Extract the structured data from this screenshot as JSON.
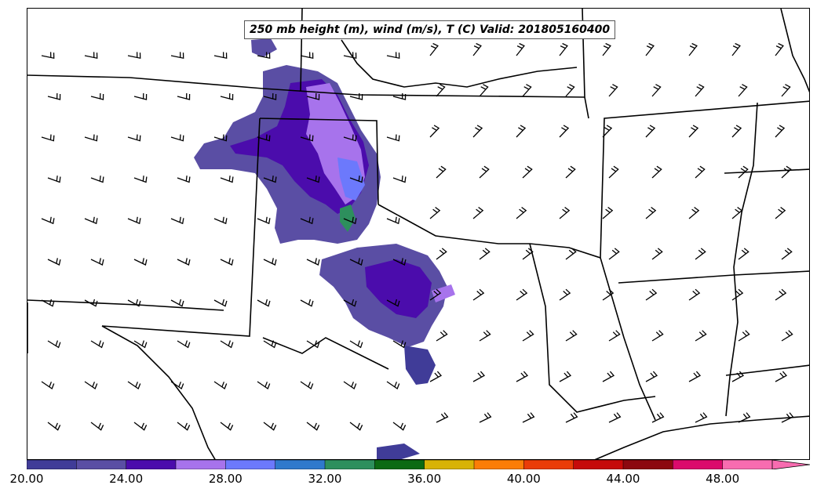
{
  "title": "250 mb height (m), wind (m/s), T (C) Valid: 201805160400",
  "colorbar": {
    "levels": [
      20,
      22,
      24,
      26,
      28,
      30,
      32,
      34,
      36,
      38,
      40,
      42,
      44,
      46,
      48,
      50
    ],
    "colors": [
      "#403c98",
      "#5a4ea4",
      "#4b0cac",
      "#a773ec",
      "#6c79fc",
      "#2f79cc",
      "#2d8f5d",
      "#0b6a13",
      "#d8b306",
      "#fb7d07",
      "#ea3c08",
      "#c60a0a",
      "#8c0810",
      "#db0a6c",
      "#f86cb0"
    ],
    "extend": "max",
    "tick_labels": [
      {
        "value": 20,
        "label": "20.00"
      },
      {
        "value": 24,
        "label": "24.00"
      },
      {
        "value": 28,
        "label": "28.00"
      },
      {
        "value": 32,
        "label": "32.00"
      },
      {
        "value": 36,
        "label": "36.00"
      },
      {
        "value": 40,
        "label": "40.00"
      },
      {
        "value": 44,
        "label": "44.00"
      },
      {
        "value": 48,
        "label": "48.00"
      }
    ]
  },
  "map": {
    "barb_color": "#000000",
    "boundary_color": "#000000"
  }
}
